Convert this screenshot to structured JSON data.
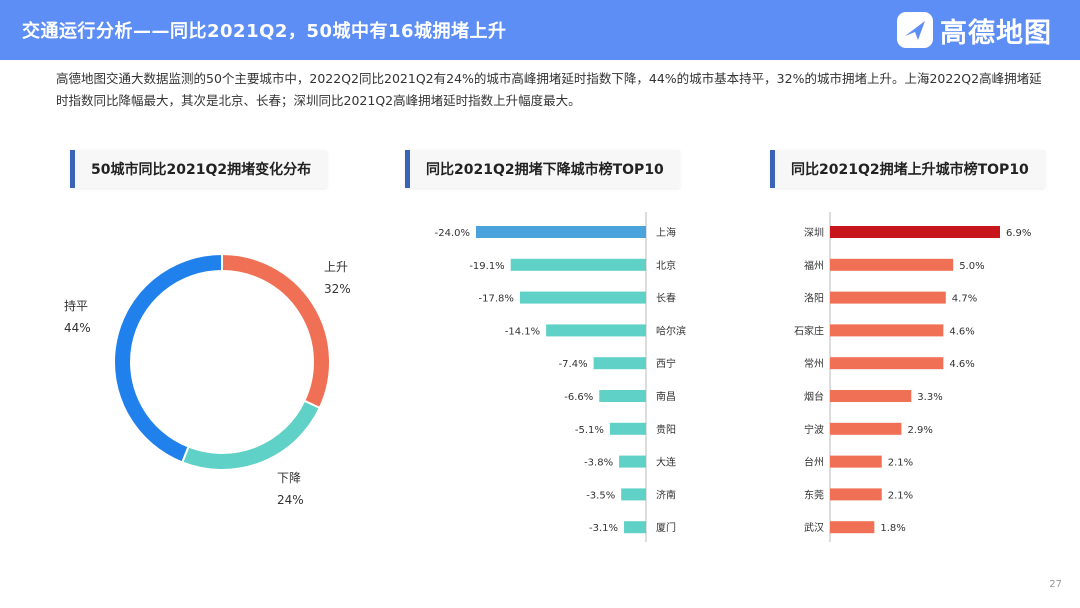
{
  "header": {
    "title": "交通运行分析——同比2021Q2，50城中有16城拥堵上升",
    "logo_text": "高德地图",
    "bg_color": "#5d8ef5"
  },
  "summary": "高德地图交通大数据监测的50个主要城市中，2022Q2同比2021Q2有24%的城市高峰拥堵延时指数下降，44%的城市基本持平，32%的城市拥堵上升。上海2022Q2高峰拥堵延时指数同比降幅最大，其次是北京、长春；深圳同比2021Q2高峰拥堵延时指数上升幅度最大。",
  "page_number": "27",
  "chart_data": [
    {
      "type": "pie",
      "title": "50城市同比2021Q2拥堵变化分布",
      "slices": [
        {
          "label": "上升",
          "value": 32,
          "value_label": "32%",
          "color": "#f07055"
        },
        {
          "label": "下降",
          "value": 24,
          "value_label": "24%",
          "color": "#5fd1c6"
        },
        {
          "label": "持平",
          "value": 44,
          "value_label": "44%",
          "color": "#2181ec"
        }
      ]
    },
    {
      "type": "bar",
      "title": "同比2021Q2拥堵下降城市榜TOP10",
      "orientation": "horizontal",
      "categories": [
        "上海",
        "北京",
        "长春",
        "哈尔滨",
        "西宁",
        "南昌",
        "贵阳",
        "大连",
        "济南",
        "厦门"
      ],
      "values": [
        -24.0,
        -19.1,
        -17.8,
        -14.1,
        -7.4,
        -6.6,
        -5.1,
        -3.8,
        -3.5,
        -3.1
      ],
      "value_labels": [
        "-24.0%",
        "-19.1%",
        "-17.8%",
        "-14.1%",
        "-7.4%",
        "-6.6%",
        "-5.1%",
        "-3.8%",
        "-3.5%",
        "-3.1%"
      ],
      "highlight_color": "#4aa3dd",
      "bar_color": "#5fd1c6",
      "xlim": [
        -24,
        0
      ]
    },
    {
      "type": "bar",
      "title": "同比2021Q2拥堵上升城市榜TOP10",
      "orientation": "horizontal",
      "categories": [
        "深圳",
        "福州",
        "洛阳",
        "石家庄",
        "常州",
        "烟台",
        "宁波",
        "台州",
        "东莞",
        "武汉"
      ],
      "values": [
        6.9,
        5.0,
        4.7,
        4.6,
        4.6,
        3.3,
        2.9,
        2.1,
        2.1,
        1.8
      ],
      "value_labels": [
        "6.9%",
        "5.0%",
        "4.7%",
        "4.6%",
        "4.6%",
        "3.3%",
        "2.9%",
        "2.1%",
        "2.1%",
        "1.8%"
      ],
      "highlight_color": "#c8161d",
      "bar_color": "#f07055",
      "xlim": [
        0,
        6.9
      ]
    }
  ]
}
